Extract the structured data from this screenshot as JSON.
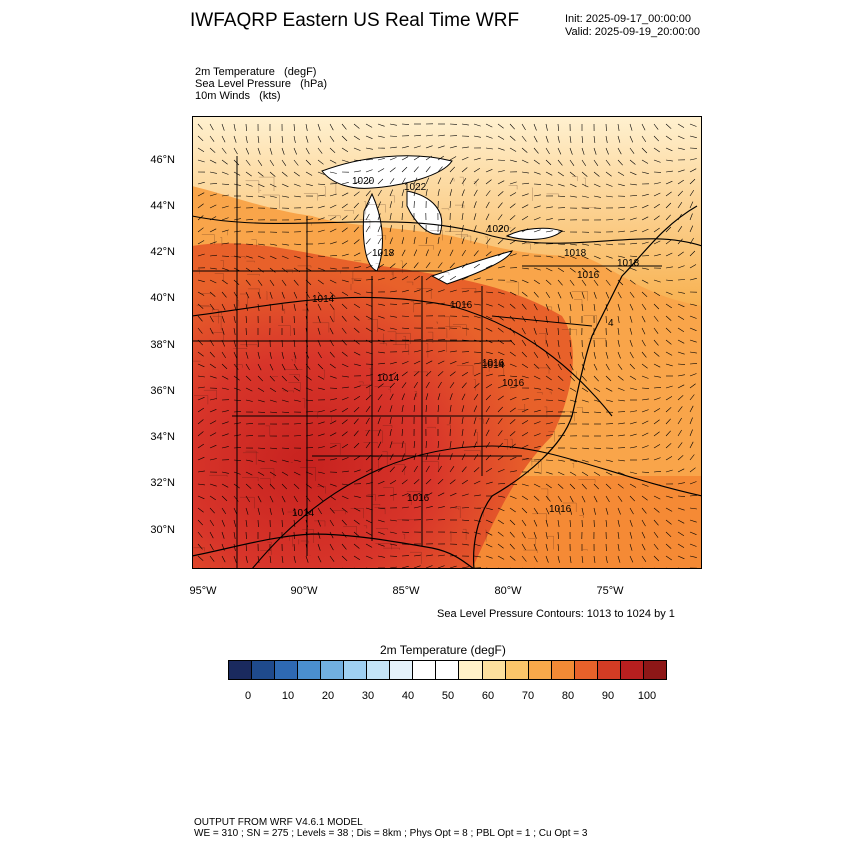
{
  "header": {
    "title": "IWFAQRP Eastern US Real Time WRF",
    "init": "Init: 2025-09-17_00:00:00",
    "valid": "Valid: 2025-09-19_20:00:00"
  },
  "fields": [
    "2m Temperature   (degF)",
    "Sea Level Pressure   (hPa)",
    "10m Winds   (kts)"
  ],
  "map": {
    "lat_labels": [
      "46°N",
      "44°N",
      "42°N",
      "40°N",
      "38°N",
      "36°N",
      "34°N",
      "32°N",
      "30°N"
    ],
    "lon_labels": [
      "95°W",
      "90°W",
      "85°W",
      "80°W",
      "75°W"
    ],
    "lat_range": [
      28.4,
      47.8
    ],
    "lon_range": [
      -95.6,
      -70.4
    ],
    "pressure_labels": [
      "1020",
      "1022",
      "1018",
      "1020",
      "1018",
      "1018",
      "1016",
      "1016",
      "1014",
      "1014",
      "1016",
      "1016",
      "1016",
      "4",
      "1014",
      "1016",
      "1014"
    ],
    "wind_vectors": "dense 10m wind barbs over full domain"
  },
  "contour_note": "Sea Level Pressure Contours: 1013 to 1024 by 1",
  "colorbar": {
    "title": "2m Temperature  (degF)",
    "labels": [
      "0",
      "10",
      "20",
      "30",
      "40",
      "50",
      "60",
      "70",
      "80",
      "90",
      "100"
    ],
    "colors": [
      "#1a2a5e",
      "#1f4a8c",
      "#2e69b2",
      "#4a8fcf",
      "#71afe0",
      "#9fd0f2",
      "#c4e4f7",
      "#e4f2fb",
      "#ffffff",
      "#ffffff",
      "#fff1c8",
      "#fde09e",
      "#fbc56a",
      "#f8a84a",
      "#f28a35",
      "#e8612a",
      "#d33c24",
      "#b71f1f",
      "#8d1717"
    ]
  },
  "footer": {
    "line1": "OUTPUT FROM WRF V4.6.1 MODEL",
    "line2": "WE = 310 ; SN = 275 ; Levels = 38 ; Dis = 8km ; Phys Opt = 8 ; PBL Opt = 1 ; Cu Opt = 3"
  }
}
